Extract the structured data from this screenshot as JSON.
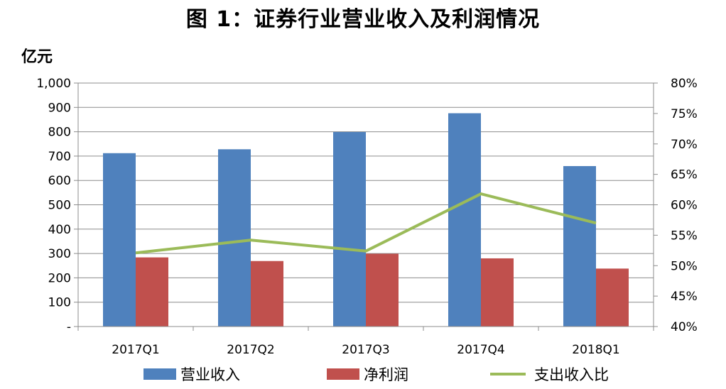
{
  "chart_data": {
    "type": "bar",
    "title": "图 1：证券行业营业收入及利润情况",
    "ylabel": "亿元",
    "categories": [
      "2017Q1",
      "2017Q2",
      "2017Q3",
      "2017Q4",
      "2018Q1"
    ],
    "y_ticks": [
      "-",
      "100",
      "200",
      "300",
      "400",
      "500",
      "600",
      "700",
      "800",
      "900",
      "1,000"
    ],
    "y2_ticks": [
      "40%",
      "45%",
      "50%",
      "55%",
      "60%",
      "65%",
      "70%",
      "75%",
      "80%"
    ],
    "ylim": [
      0,
      1000
    ],
    "y2lim": [
      40,
      80
    ],
    "grid": true,
    "legend_position": "bottom",
    "series": [
      {
        "name": "营业收入",
        "type": "bar",
        "axis": "left",
        "color": "#4f81bd",
        "values": [
          712,
          728,
          799,
          876,
          659
        ]
      },
      {
        "name": "净利润",
        "type": "bar",
        "axis": "left",
        "color": "#c0504d",
        "values": [
          284,
          269,
          299,
          280,
          238
        ]
      },
      {
        "name": "支出收入比",
        "type": "line",
        "axis": "right",
        "color": "#9bbb59",
        "values": [
          52.1,
          54.2,
          52.4,
          61.8,
          57.0
        ]
      }
    ]
  }
}
